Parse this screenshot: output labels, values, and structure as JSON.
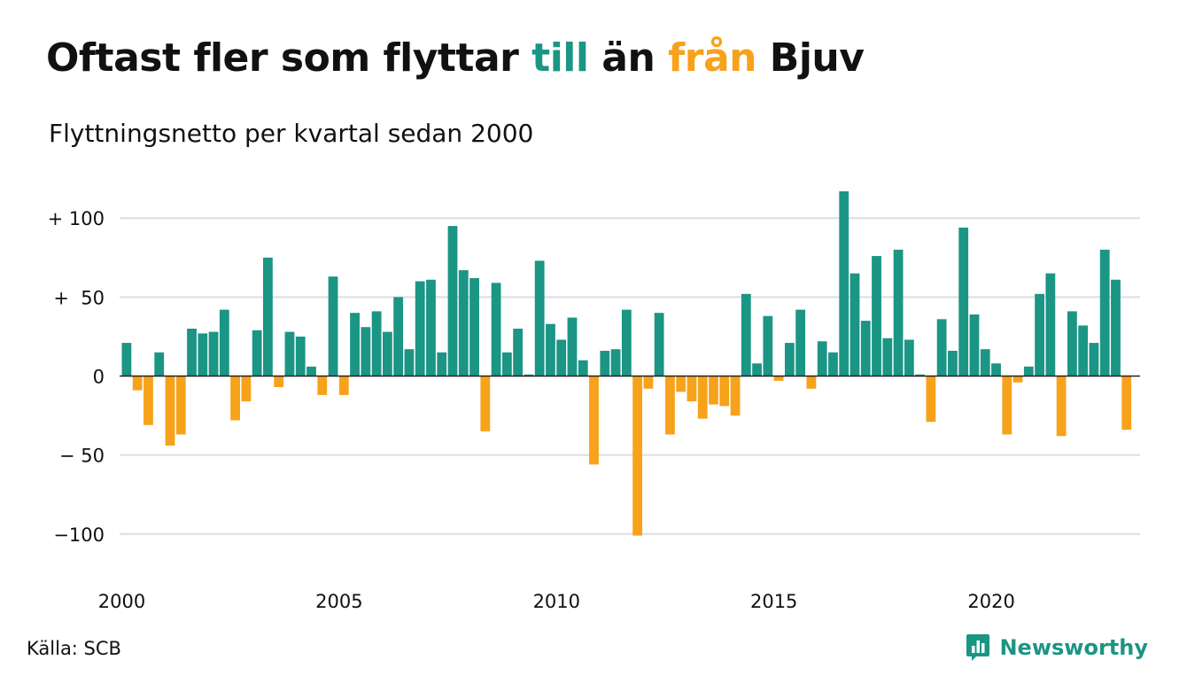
{
  "title_parts": {
    "part1": "Oftast fler som flyttar ",
    "word_in": "till",
    "part2": " än ",
    "word_out": "från",
    "part3": " Bjuv"
  },
  "subtitle": "Flyttningsnetto per kvartal sedan 2000",
  "source": "Källa: SCB",
  "brand": {
    "name": "Newsworthy",
    "logo_icon": "chart-speech-bubble-icon"
  },
  "colors": {
    "positive": "#1b9584",
    "negative": "#f7a21b",
    "grid": "#dddde3",
    "text": "#111111"
  },
  "chart_data": {
    "type": "bar",
    "x_start": "2000 Q1",
    "periods_per_year": 4,
    "x_ticks": [
      "2000",
      "2005",
      "2010",
      "2015",
      "2020"
    ],
    "y_ticks": [
      {
        "value": 100,
        "label": "+ 100"
      },
      {
        "value": 50,
        "label": "+  50"
      },
      {
        "value": 0,
        "label": "0"
      },
      {
        "value": -50,
        "label": "− 50"
      },
      {
        "value": -100,
        "label": "−100"
      }
    ],
    "ylim": [
      -101,
      117
    ],
    "grid": true,
    "values": [
      21,
      -9,
      -31,
      15,
      -44,
      -37,
      30,
      27,
      28,
      42,
      -28,
      -16,
      29,
      75,
      -7,
      28,
      25,
      6,
      -12,
      63,
      -12,
      40,
      31,
      41,
      28,
      50,
      17,
      60,
      61,
      15,
      95,
      67,
      62,
      -35,
      59,
      15,
      30,
      1,
      73,
      33,
      23,
      37,
      10,
      -56,
      16,
      17,
      42,
      -101,
      -8,
      40,
      -37,
      -10,
      -16,
      -27,
      -18,
      -19,
      -25,
      52,
      8,
      38,
      -3,
      21,
      42,
      -8,
      22,
      15,
      117,
      65,
      35,
      76,
      24,
      80,
      23,
      1,
      -29,
      36,
      16,
      94,
      39,
      17,
      8,
      -37,
      -4,
      6,
      52,
      65,
      -38,
      41,
      32,
      21,
      80,
      61,
      -34
    ]
  }
}
